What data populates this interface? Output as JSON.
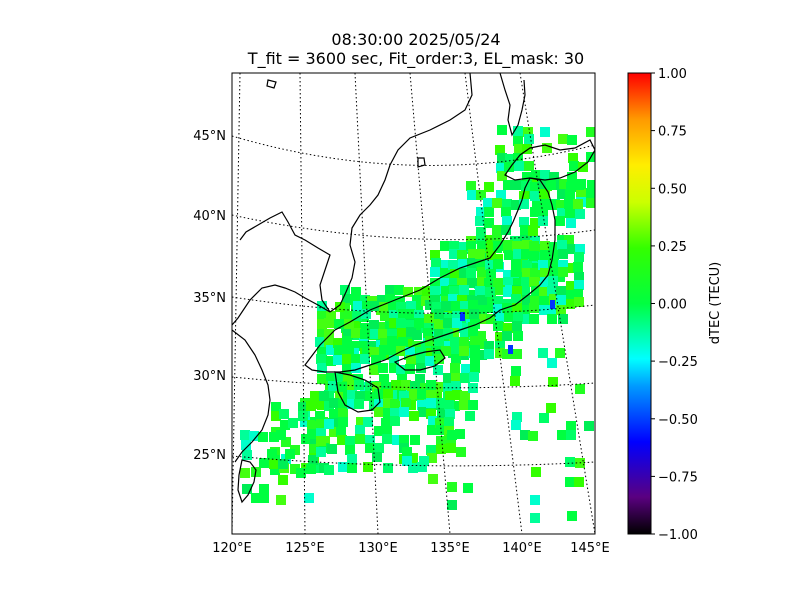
{
  "title_line1": "08:30:00 2025/05/24",
  "title_line2": "T_fit = 3600 sec, Fit_order:3, EL_mask: 30",
  "map": {
    "lon_range": [
      120,
      145
    ],
    "lat_range": [
      20,
      49
    ],
    "lon_ticks": [
      "120°E",
      "125°E",
      "130°E",
      "135°E",
      "140°E",
      "145°E"
    ],
    "lat_ticks": [
      "25°N",
      "30°N",
      "35°N",
      "40°N",
      "45°N"
    ],
    "graticule": "dotted"
  },
  "colorbar": {
    "label": "dTEC (TECU)",
    "min": -1.0,
    "max": 1.0,
    "ticks": [
      "1.00",
      "0.75",
      "0.50",
      "0.25",
      "0.00",
      "−0.25",
      "−0.50",
      "−0.75",
      "−1.00"
    ],
    "colormap": "nipy_spectral-like"
  },
  "colors": {
    "land_outline": "#000000",
    "dominant_dtec": "#00ff40",
    "ocean": "#ffffff"
  }
}
